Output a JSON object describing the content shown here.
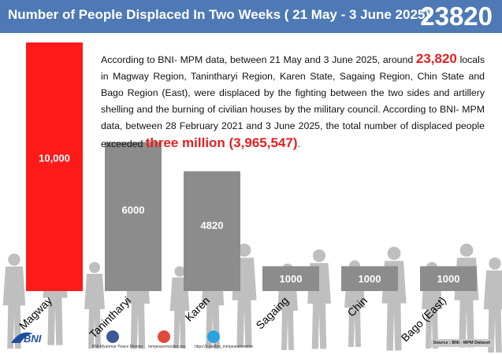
{
  "header": {
    "title": "Number of People Displaced In Two Weeks ( 21 May - 3 June 2025)",
    "total": "23820"
  },
  "description": {
    "part1": "According to BNI- MPM data, between 21 May and 3 June 2025, around ",
    "highlight1": "23,820",
    "part2": " locals in Magway Region, Tanintharyi Region, Karen State, Sagaing Region, Chin State and Bago Region (East), were displaced by the fighting between the two sides and artillery shelling and the burning of civilian houses by the military council. According to BNI- MPM data, between 28 February 2021 and 3 June 2025, the total number of displaced people exceeded ",
    "highlight2": "three million (3,965,547)",
    "part3": "."
  },
  "chart_data": {
    "type": "bar",
    "categories": [
      "Magway",
      "Tanintharyi",
      "Karen",
      "Sagaing",
      "Chin",
      "Bago (East)"
    ],
    "values": [
      10000,
      6000,
      4820,
      1000,
      1000,
      1000
    ],
    "value_labels": [
      "10,000",
      "6000",
      "4820",
      "1000",
      "1000",
      "1000"
    ],
    "ylim": [
      0,
      10000
    ],
    "colors": [
      "#ff1a1a",
      "#8c8c8c",
      "#8c8c8c",
      "#8c8c8c",
      "#8c8c8c",
      "#8c8c8c"
    ]
  },
  "footer": {
    "source": "Source : BNI - MPM Dataset",
    "facebook": "BNI-Myanmar Peace Monitor",
    "website": "mmpeacemonitor.org",
    "telegram": "https://t.me/bni_mmpeacemonitor"
  },
  "colors": {
    "header_bg": "#4e79b5",
    "highlight": "#e51f1f",
    "bar_primary": "#ff1a1a",
    "bar_secondary": "#8c8c8c"
  }
}
